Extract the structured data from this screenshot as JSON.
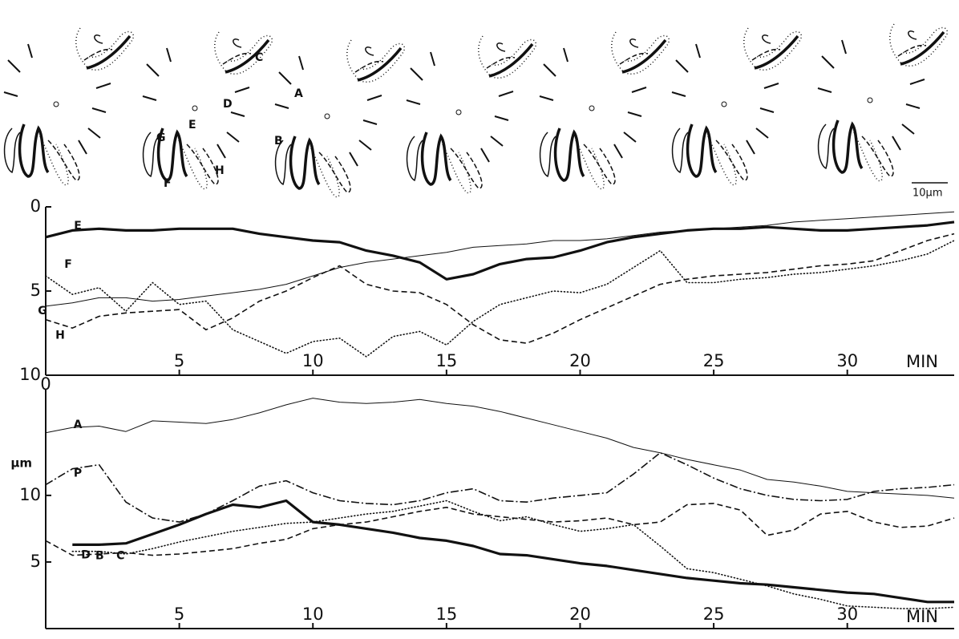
{
  "drawing": {
    "labels": [
      "C",
      "A",
      "D",
      "B",
      "E",
      "G",
      "F",
      "H"
    ],
    "scale_label": "10µm"
  },
  "chart_data": [
    {
      "type": "line",
      "x_label": "MIN",
      "x": [
        0,
        1,
        2,
        3,
        4,
        5,
        6,
        7,
        8,
        9,
        10,
        11,
        12,
        13,
        14,
        15,
        16,
        17,
        18,
        19,
        20,
        21,
        22,
        23,
        24,
        25,
        26,
        27,
        28,
        29,
        30,
        31,
        32,
        33,
        34
      ],
      "xlim": [
        0,
        34
      ],
      "xticks": [
        0,
        5,
        10,
        15,
        20,
        25,
        30
      ],
      "ylim": [
        10,
        0
      ],
      "yticks": [
        0,
        5,
        10
      ],
      "grid": false,
      "series": [
        {
          "name": "E",
          "color": "#111111",
          "style": "thick",
          "values": [
            1.8,
            1.4,
            1.3,
            1.4,
            1.4,
            1.3,
            1.3,
            1.3,
            1.6,
            1.8,
            2.0,
            2.1,
            2.6,
            2.9,
            3.3,
            4.3,
            4.0,
            3.4,
            3.1,
            3.0,
            2.6,
            2.1,
            1.8,
            1.6,
            1.4,
            1.3,
            1.3,
            1.2,
            1.3,
            1.4,
            1.4,
            1.3,
            1.2,
            1.1,
            0.9
          ]
        },
        {
          "name": "F",
          "color": "#111111",
          "style": "dotted",
          "values": [
            4.1,
            5.2,
            4.8,
            6.2,
            4.5,
            5.8,
            5.6,
            7.3,
            8.0,
            8.7,
            8.0,
            7.8,
            8.9,
            7.7,
            7.4,
            8.2,
            6.8,
            5.8,
            5.4,
            5.0,
            5.1,
            4.6,
            3.6,
            2.6,
            4.5,
            4.5,
            4.3,
            4.2,
            4.0,
            3.9,
            3.7,
            3.5,
            3.2,
            2.8,
            2.0
          ]
        },
        {
          "name": "G",
          "color": "#111111",
          "style": "thin",
          "values": [
            5.9,
            5.7,
            5.4,
            5.4,
            5.6,
            5.5,
            5.3,
            5.1,
            4.9,
            4.6,
            4.1,
            3.6,
            3.3,
            3.1,
            2.9,
            2.7,
            2.4,
            2.3,
            2.2,
            2.0,
            2.0,
            1.9,
            1.7,
            1.5,
            1.4,
            1.3,
            1.2,
            1.1,
            0.9,
            0.8,
            0.7,
            0.6,
            0.5,
            0.4,
            0.3
          ]
        },
        {
          "name": "H",
          "color": "#111111",
          "style": "dashed",
          "values": [
            6.7,
            7.2,
            6.5,
            6.3,
            6.2,
            6.1,
            7.3,
            6.6,
            5.6,
            5.0,
            4.2,
            3.5,
            4.6,
            5.0,
            5.1,
            5.8,
            7.0,
            7.9,
            8.1,
            7.5,
            6.7,
            6.0,
            5.3,
            4.6,
            4.3,
            4.1,
            4.0,
            3.9,
            3.7,
            3.5,
            3.4,
            3.2,
            2.6,
            2.0,
            1.6
          ]
        }
      ]
    },
    {
      "type": "line",
      "x_label": "MIN",
      "y_label": "µm",
      "x": [
        0,
        1,
        2,
        3,
        4,
        5,
        6,
        7,
        8,
        9,
        10,
        11,
        12,
        13,
        14,
        15,
        16,
        17,
        18,
        19,
        20,
        21,
        22,
        23,
        24,
        25,
        26,
        27,
        28,
        29,
        30,
        31,
        32,
        33,
        34
      ],
      "xlim": [
        0,
        34
      ],
      "xticks": [
        5,
        10,
        15,
        20,
        25,
        30
      ],
      "ylim": [
        0,
        18
      ],
      "yticks": [
        5,
        10
      ],
      "grid": false,
      "series": [
        {
          "name": "A",
          "color": "#111111",
          "style": "thin",
          "values": [
            14.7,
            15.1,
            15.2,
            14.8,
            15.6,
            15.5,
            15.4,
            15.7,
            16.2,
            16.8,
            17.3,
            17.0,
            16.9,
            17.0,
            17.2,
            16.9,
            16.7,
            16.3,
            15.8,
            15.3,
            14.8,
            14.3,
            13.6,
            13.2,
            12.7,
            12.3,
            11.9,
            11.2,
            11.0,
            10.7,
            10.3,
            10.2,
            10.1,
            10.0,
            9.8
          ]
        },
        {
          "name": "P",
          "color": "#111111",
          "style": "dashdot",
          "values": [
            10.8,
            12.0,
            12.3,
            9.5,
            8.3,
            8.0,
            8.6,
            9.6,
            10.7,
            11.1,
            10.2,
            9.6,
            9.4,
            9.3,
            9.6,
            10.2,
            10.5,
            9.6,
            9.5,
            9.8,
            10.0,
            10.2,
            11.6,
            13.2,
            12.3,
            11.3,
            10.5,
            10.0,
            9.7,
            9.6,
            9.7,
            10.3,
            10.5,
            10.6,
            10.8
          ]
        },
        {
          "name": "B",
          "color": "#111111",
          "style": "thick",
          "values": [
            null,
            6.3,
            6.3,
            6.4,
            7.1,
            7.8,
            8.6,
            9.3,
            9.1,
            9.6,
            8.0,
            7.8,
            7.5,
            7.2,
            6.8,
            6.6,
            6.2,
            5.6,
            5.5,
            5.2,
            4.9,
            4.7,
            4.4,
            4.1,
            3.8,
            3.6,
            3.4,
            3.3,
            3.1,
            2.9,
            2.7,
            2.6,
            2.3,
            2.0,
            2.0
          ]
        },
        {
          "name": "C",
          "color": "#111111",
          "style": "dotted",
          "values": [
            null,
            5.8,
            5.8,
            5.6,
            6.0,
            6.5,
            6.9,
            7.3,
            7.6,
            7.9,
            8.0,
            8.3,
            8.6,
            8.8,
            9.2,
            9.6,
            8.8,
            8.1,
            8.4,
            7.8,
            7.3,
            7.5,
            7.8,
            6.2,
            4.5,
            4.2,
            3.7,
            3.2,
            2.6,
            2.2,
            1.7,
            1.6,
            1.5,
            1.5,
            1.6
          ]
        },
        {
          "name": "D",
          "color": "#111111",
          "style": "dashed",
          "values": [
            6.6,
            5.5,
            5.6,
            5.7,
            5.5,
            5.6,
            5.8,
            6.0,
            6.4,
            6.7,
            7.5,
            7.8,
            8.0,
            8.4,
            8.8,
            9.1,
            8.6,
            8.4,
            8.2,
            8.0,
            8.1,
            8.3,
            7.8,
            8.0,
            9.3,
            9.4,
            8.9,
            7.0,
            7.4,
            8.6,
            8.8,
            8.0,
            7.6,
            7.7,
            8.3
          ]
        }
      ]
    }
  ]
}
